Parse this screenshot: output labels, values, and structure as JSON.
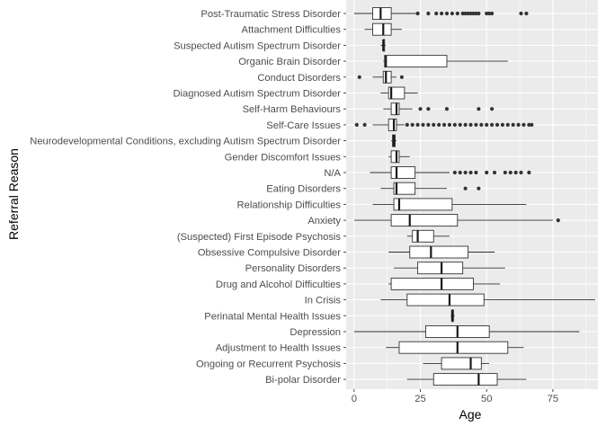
{
  "chart_data": {
    "type": "boxplot",
    "orientation": "horizontal",
    "xlabel": "Age",
    "ylabel": "Referral Reason",
    "xlim": [
      -3,
      92
    ],
    "xticks": [
      0,
      25,
      50,
      75
    ],
    "grid": true,
    "colors": {
      "panel": "#ebebeb",
      "grid_major": "#ffffff",
      "box_fill": "#ffffff",
      "box_stroke": "#333333",
      "median": "#1a1a1a",
      "outlier": "#333333"
    },
    "series": [
      {
        "label": "Post-Traumatic Stress Disorder",
        "min": 0,
        "q1": 7,
        "median": 10,
        "q3": 14,
        "max": 24,
        "outliers": [
          24,
          28,
          31,
          33,
          35,
          37,
          39,
          41,
          42,
          43,
          44,
          45,
          46,
          47,
          50,
          51,
          52,
          63,
          65
        ]
      },
      {
        "label": "Attachment Difficulties",
        "min": 4,
        "q1": 7,
        "median": 11,
        "q3": 14,
        "max": 18,
        "outliers": []
      },
      {
        "label": "Suspected Autism Spectrum Disorder",
        "min": 10,
        "q1": 11,
        "median": 11,
        "q3": 11.5,
        "max": 12,
        "outliers": []
      },
      {
        "label": "Organic Brain Disorder",
        "min": 11,
        "q1": 11.5,
        "median": 12,
        "q3": 35,
        "max": 58,
        "outliers": []
      },
      {
        "label": "Conduct Disorders",
        "min": 7,
        "q1": 11,
        "median": 12,
        "q3": 14,
        "max": 16,
        "outliers": [
          2,
          18
        ]
      },
      {
        "label": "Diagnosed Autism Spectrum Disorder",
        "min": 10,
        "q1": 13,
        "median": 14,
        "q3": 19,
        "max": 24,
        "outliers": []
      },
      {
        "label": "Self-Harm Behaviours",
        "min": 11,
        "q1": 14,
        "median": 16,
        "q3": 17,
        "max": 22,
        "outliers": [
          25,
          28,
          35,
          47,
          52
        ]
      },
      {
        "label": "Self-Care Issues",
        "min": 7,
        "q1": 13,
        "median": 15,
        "q3": 16,
        "max": 19,
        "outliers": [
          1,
          4,
          20,
          22,
          24,
          26,
          28,
          30,
          32,
          34,
          36,
          38,
          40,
          42,
          44,
          46,
          48,
          50,
          52,
          54,
          56,
          58,
          60,
          62,
          64,
          66,
          67
        ]
      },
      {
        "label": "Neurodevelopmental Conditions, excluding Autism Spectrum Disorder",
        "min": 14,
        "q1": 14.5,
        "median": 15,
        "q3": 15.5,
        "max": 16,
        "outliers": []
      },
      {
        "label": "Gender Discomfort Issues",
        "min": 13,
        "q1": 14,
        "median": 16,
        "q3": 17,
        "max": 21,
        "outliers": []
      },
      {
        "label": "N/A",
        "min": 6,
        "q1": 14,
        "median": 16,
        "q3": 23,
        "max": 36,
        "outliers": [
          38,
          40,
          42,
          44,
          46,
          50,
          53,
          57,
          59,
          61,
          63,
          66
        ]
      },
      {
        "label": "Eating Disorders",
        "min": 10,
        "q1": 15,
        "median": 16,
        "q3": 23,
        "max": 35,
        "outliers": [
          42,
          47
        ]
      },
      {
        "label": "Relationship Difficulties",
        "min": 7,
        "q1": 15,
        "median": 17,
        "q3": 37,
        "max": 65,
        "outliers": []
      },
      {
        "label": "Anxiety",
        "min": 0,
        "q1": 14,
        "median": 21,
        "q3": 39,
        "max": 75,
        "outliers": [
          77
        ]
      },
      {
        "label": "(Suspected) First Episode Psychosis",
        "min": 20,
        "q1": 22,
        "median": 24,
        "q3": 30,
        "max": 36,
        "outliers": []
      },
      {
        "label": "Obsessive Compulsive Disorder",
        "min": 13,
        "q1": 21,
        "median": 29,
        "q3": 43,
        "max": 53,
        "outliers": []
      },
      {
        "label": "Personality Disorders",
        "min": 15,
        "q1": 24,
        "median": 33,
        "q3": 41,
        "max": 57,
        "outliers": []
      },
      {
        "label": "Drug and Alcohol Difficulties",
        "min": 13,
        "q1": 14,
        "median": 33,
        "q3": 45,
        "max": 55,
        "outliers": []
      },
      {
        "label": "In Crisis",
        "min": 10,
        "q1": 20,
        "median": 36,
        "q3": 49,
        "max": 91,
        "outliers": []
      },
      {
        "label": "Perinatal Mental Health Issues",
        "min": 36.5,
        "q1": 37,
        "median": 37,
        "q3": 37.5,
        "max": 38,
        "outliers": []
      },
      {
        "label": "Depression",
        "min": 0,
        "q1": 27,
        "median": 39,
        "q3": 51,
        "max": 85,
        "outliers": []
      },
      {
        "label": "Adjustment to Health Issues",
        "min": 12,
        "q1": 17,
        "median": 39,
        "q3": 58,
        "max": 64,
        "outliers": []
      },
      {
        "label": "Ongoing or Recurrent Psychosis",
        "min": 26,
        "q1": 33,
        "median": 44,
        "q3": 48,
        "max": 51,
        "outliers": []
      },
      {
        "label": "Bi-polar Disorder",
        "min": 20,
        "q1": 30,
        "median": 47,
        "q3": 54,
        "max": 65,
        "outliers": []
      }
    ]
  }
}
